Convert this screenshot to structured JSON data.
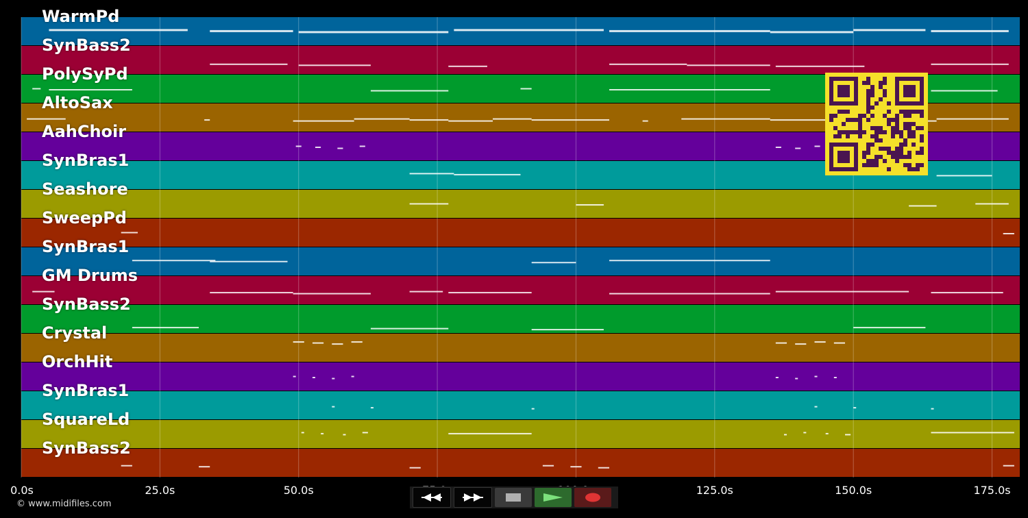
{
  "tracks": [
    {
      "name": "WarmPd",
      "color": "#00649b"
    },
    {
      "name": "SynBass2",
      "color": "#9b0034"
    },
    {
      "name": "PolySyPd",
      "color": "#009b2c"
    },
    {
      "name": "AltoSax",
      "color": "#9b6400"
    },
    {
      "name": "AahChoir",
      "color": "#64009b"
    },
    {
      "name": "SynBras1",
      "color": "#009b9b"
    },
    {
      "name": "Seashore",
      "color": "#9b9b00"
    },
    {
      "name": "SweepPd",
      "color": "#9b2700"
    },
    {
      "name": "SynBras1",
      "color": "#00649b"
    },
    {
      "name": "GM Drums",
      "color": "#9b0034"
    },
    {
      "name": "SynBass2",
      "color": "#009b2c"
    },
    {
      "name": "Crystal",
      "color": "#9b6400"
    },
    {
      "name": "OrchHit",
      "color": "#64009b"
    },
    {
      "name": "SynBras1",
      "color": "#009b9b"
    },
    {
      "name": "SquareLd",
      "color": "#9b9b00"
    },
    {
      "name": "SynBass2",
      "color": "#9b2700"
    }
  ],
  "time_axis": {
    "ticks": [
      "0.0s",
      "25.0s",
      "50.0s",
      "75.0s",
      "100.0s",
      "125.0s",
      "150.0s",
      "175.0s"
    ],
    "tick_values": [
      0,
      25,
      50,
      75,
      100,
      125,
      150,
      175
    ],
    "max_seconds": 180
  },
  "copyright": "© www.midifiles.com",
  "controls": {
    "rewind": "rewind-icon",
    "fast_forward": "fast-forward-icon",
    "stop": "stop-icon",
    "play": "play-icon",
    "record": "record-icon"
  },
  "notes": [
    [
      [
        5,
        30
      ],
      [
        34,
        49
      ],
      [
        50,
        77
      ],
      [
        78,
        105
      ],
      [
        106,
        135
      ],
      [
        135,
        150
      ],
      [
        150,
        163
      ],
      [
        164,
        178
      ]
    ],
    [
      [
        34,
        48
      ],
      [
        50,
        63
      ],
      [
        77,
        84
      ],
      [
        106,
        120
      ],
      [
        120,
        135
      ],
      [
        136,
        152
      ],
      [
        164,
        178
      ]
    ],
    [
      [
        2,
        3.5
      ],
      [
        5,
        20
      ],
      [
        63,
        77
      ],
      [
        90,
        92
      ],
      [
        106,
        135
      ],
      [
        164,
        176
      ]
    ],
    [
      [
        1,
        8
      ],
      [
        33,
        34
      ],
      [
        49,
        60
      ],
      [
        60,
        70
      ],
      [
        70,
        77
      ],
      [
        77,
        85
      ],
      [
        85,
        92
      ],
      [
        92,
        106
      ],
      [
        112,
        113
      ],
      [
        119,
        135
      ],
      [
        135,
        150
      ],
      [
        150,
        165
      ],
      [
        165,
        178
      ]
    ],
    [
      [
        49.5,
        50.5
      ],
      [
        53,
        54
      ],
      [
        57,
        58
      ],
      [
        61,
        62
      ],
      [
        136,
        137
      ],
      [
        139.5,
        140.5
      ],
      [
        143,
        144
      ]
    ],
    [
      [
        70,
        78
      ],
      [
        78,
        90
      ],
      [
        165,
        175
      ]
    ],
    [
      [
        70,
        77
      ],
      [
        100,
        105
      ],
      [
        160,
        165
      ],
      [
        172,
        178
      ]
    ],
    [
      [
        18,
        21
      ],
      [
        177,
        179
      ]
    ],
    [
      [
        20,
        35
      ],
      [
        34,
        48
      ],
      [
        92,
        100
      ],
      [
        106,
        135
      ]
    ],
    [
      [
        2,
        6
      ],
      [
        34,
        49
      ],
      [
        49,
        63
      ],
      [
        70,
        76
      ],
      [
        77,
        92
      ],
      [
        106,
        135
      ],
      [
        136,
        160
      ],
      [
        164,
        177
      ]
    ],
    [
      [
        20,
        32
      ],
      [
        63,
        77
      ],
      [
        92,
        105
      ],
      [
        150,
        163
      ]
    ],
    [
      [
        49,
        51
      ],
      [
        52.5,
        54.5
      ],
      [
        56,
        58
      ],
      [
        59.5,
        61.5
      ],
      [
        136,
        138
      ],
      [
        139.5,
        141.5
      ],
      [
        143,
        145
      ],
      [
        146.5,
        148.5
      ]
    ],
    [
      [
        49,
        49.5
      ],
      [
        52.5,
        53
      ],
      [
        56,
        56.5
      ],
      [
        59.5,
        60
      ],
      [
        136,
        136.5
      ],
      [
        139.5,
        140
      ],
      [
        143,
        143.5
      ],
      [
        146.5,
        147
      ]
    ],
    [
      [
        56,
        56.5
      ],
      [
        63,
        63.5
      ],
      [
        92,
        92.5
      ],
      [
        143,
        143.5
      ],
      [
        150,
        150.5
      ],
      [
        164,
        164.5
      ]
    ],
    [
      [
        50.5,
        51
      ],
      [
        54,
        54.5
      ],
      [
        58,
        58.5
      ],
      [
        61.5,
        62.5
      ],
      [
        77,
        92
      ],
      [
        137.5,
        138
      ],
      [
        141,
        141.5
      ],
      [
        145,
        145.5
      ],
      [
        148.5,
        149.5
      ],
      [
        164,
        179
      ]
    ],
    [
      [
        18,
        20
      ],
      [
        32,
        34
      ],
      [
        70,
        72
      ],
      [
        94,
        96
      ],
      [
        99,
        101
      ],
      [
        104,
        106
      ],
      [
        177,
        179
      ]
    ]
  ]
}
